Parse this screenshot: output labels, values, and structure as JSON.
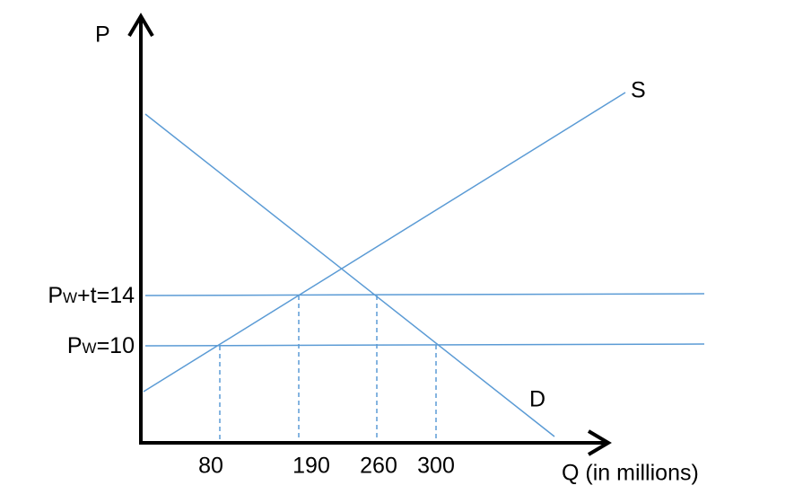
{
  "axes": {
    "y_label": "P",
    "x_label": "Q (in millions)"
  },
  "curves": {
    "supply": "S",
    "demand": "D"
  },
  "price_labels": [
    {
      "base": "P",
      "sub": "W",
      "rest": "+t=14"
    },
    {
      "base": "P",
      "sub": "W",
      "rest": "=10"
    }
  ],
  "quantity_labels": [
    "80",
    "190",
    "260",
    "300"
  ]
}
